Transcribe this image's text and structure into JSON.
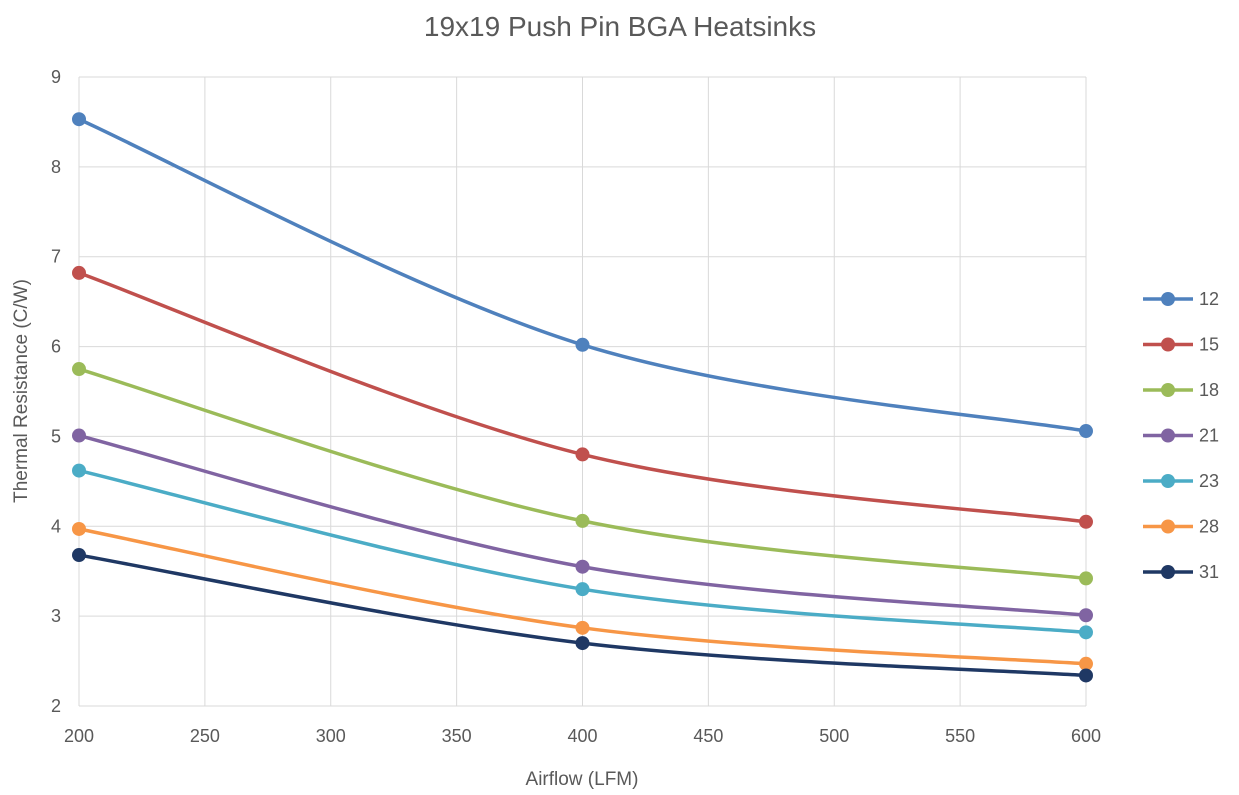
{
  "chart_data": {
    "type": "line",
    "title": "19x19 Push Pin BGA Heatsinks",
    "xlabel": "Airflow (LFM)",
    "ylabel": "Thermal Resistance (C/W)",
    "xlim": [
      200,
      600
    ],
    "ylim": [
      2,
      9
    ],
    "x_ticks": [
      200,
      250,
      300,
      350,
      400,
      450,
      500,
      550,
      600
    ],
    "y_ticks": [
      2,
      3,
      4,
      5,
      6,
      7,
      8,
      9
    ],
    "grid": true,
    "legend_position": "right",
    "smooth": true,
    "x": [
      200,
      400,
      600
    ],
    "series": [
      {
        "name": "12",
        "color": "#4F81BD",
        "values": [
          8.53,
          6.02,
          5.06
        ]
      },
      {
        "name": "15",
        "color": "#C0504D",
        "values": [
          6.82,
          4.8,
          4.05
        ]
      },
      {
        "name": "18",
        "color": "#9BBB59",
        "values": [
          5.75,
          4.06,
          3.42
        ]
      },
      {
        "name": "21",
        "color": "#8064A2",
        "values": [
          5.01,
          3.55,
          3.01
        ]
      },
      {
        "name": "23",
        "color": "#4BACC6",
        "values": [
          4.62,
          3.3,
          2.82
        ]
      },
      {
        "name": "28",
        "color": "#F79646",
        "values": [
          3.97,
          2.87,
          2.47
        ]
      },
      {
        "name": "31",
        "color": "#1F3864",
        "values": [
          3.68,
          2.7,
          2.34
        ]
      }
    ]
  }
}
